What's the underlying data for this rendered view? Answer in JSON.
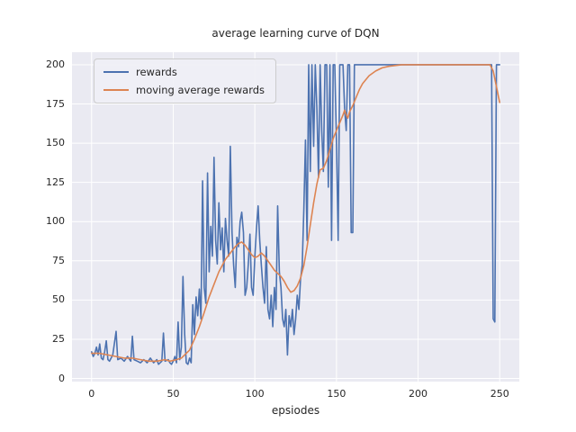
{
  "chart_data": {
    "type": "line",
    "title": "average learning curve of DQN",
    "xlabel": "epsiodes",
    "ylabel": "",
    "xlim": [
      -12,
      262
    ],
    "ylim": [
      -2,
      208
    ],
    "xticks": [
      0,
      50,
      100,
      150,
      200,
      250
    ],
    "yticks": [
      0,
      25,
      50,
      75,
      100,
      125,
      150,
      175,
      200
    ],
    "grid": true,
    "legend_position": "upper left",
    "axes_background": "#eaeaf2",
    "grid_color": "#ffffff",
    "series": [
      {
        "name": "rewards",
        "color": "#4c72b0",
        "points": [
          [
            0,
            17
          ],
          [
            1,
            14
          ],
          [
            2,
            16
          ],
          [
            3,
            20
          ],
          [
            4,
            15
          ],
          [
            5,
            22
          ],
          [
            6,
            13
          ],
          [
            7,
            12
          ],
          [
            8,
            17
          ],
          [
            9,
            24
          ],
          [
            10,
            12
          ],
          [
            11,
            11
          ],
          [
            13,
            15
          ],
          [
            15,
            30
          ],
          [
            16,
            12
          ],
          [
            18,
            13
          ],
          [
            20,
            11
          ],
          [
            22,
            14
          ],
          [
            24,
            11
          ],
          [
            25,
            27
          ],
          [
            26,
            12
          ],
          [
            28,
            11
          ],
          [
            30,
            10
          ],
          [
            32,
            12
          ],
          [
            34,
            10
          ],
          [
            36,
            13
          ],
          [
            38,
            10
          ],
          [
            40,
            12
          ],
          [
            41,
            9
          ],
          [
            43,
            11
          ],
          [
            44,
            29
          ],
          [
            45,
            11
          ],
          [
            47,
            12
          ],
          [
            48,
            10
          ],
          [
            49,
            9
          ],
          [
            50,
            11
          ],
          [
            51,
            14
          ],
          [
            52,
            10
          ],
          [
            53,
            36
          ],
          [
            54,
            12
          ],
          [
            55,
            20
          ],
          [
            56,
            65
          ],
          [
            57,
            28
          ],
          [
            58,
            10
          ],
          [
            59,
            9
          ],
          [
            60,
            13
          ],
          [
            61,
            10
          ],
          [
            62,
            47
          ],
          [
            63,
            28
          ],
          [
            64,
            52
          ],
          [
            65,
            40
          ],
          [
            66,
            57
          ],
          [
            67,
            38
          ],
          [
            68,
            126
          ],
          [
            69,
            58
          ],
          [
            70,
            48
          ],
          [
            71,
            131
          ],
          [
            72,
            68
          ],
          [
            73,
            97
          ],
          [
            74,
            78
          ],
          [
            75,
            141
          ],
          [
            76,
            88
          ],
          [
            77,
            73
          ],
          [
            78,
            112
          ],
          [
            79,
            82
          ],
          [
            80,
            96
          ],
          [
            81,
            68
          ],
          [
            82,
            102
          ],
          [
            83,
            88
          ],
          [
            84,
            78
          ],
          [
            85,
            148
          ],
          [
            86,
            93
          ],
          [
            87,
            72
          ],
          [
            88,
            58
          ],
          [
            89,
            90
          ],
          [
            90,
            84
          ],
          [
            91,
            100
          ],
          [
            92,
            106
          ],
          [
            93,
            93
          ],
          [
            94,
            53
          ],
          [
            95,
            58
          ],
          [
            96,
            73
          ],
          [
            97,
            92
          ],
          [
            98,
            58
          ],
          [
            99,
            53
          ],
          [
            100,
            78
          ],
          [
            101,
            96
          ],
          [
            102,
            110
          ],
          [
            103,
            88
          ],
          [
            104,
            72
          ],
          [
            105,
            58
          ],
          [
            106,
            48
          ],
          [
            107,
            84
          ],
          [
            108,
            44
          ],
          [
            109,
            38
          ],
          [
            110,
            53
          ],
          [
            111,
            33
          ],
          [
            112,
            58
          ],
          [
            113,
            44
          ],
          [
            114,
            110
          ],
          [
            115,
            68
          ],
          [
            116,
            58
          ],
          [
            117,
            38
          ],
          [
            118,
            33
          ],
          [
            119,
            44
          ],
          [
            120,
            15
          ],
          [
            121,
            40
          ],
          [
            122,
            33
          ],
          [
            123,
            44
          ],
          [
            124,
            28
          ],
          [
            125,
            38
          ],
          [
            126,
            53
          ],
          [
            127,
            44
          ],
          [
            128,
            63
          ],
          [
            129,
            72
          ],
          [
            130,
            108
          ],
          [
            131,
            152
          ],
          [
            132,
            88
          ],
          [
            133,
            200
          ],
          [
            134,
            132
          ],
          [
            135,
            200
          ],
          [
            136,
            148
          ],
          [
            137,
            200
          ],
          [
            138,
            172
          ],
          [
            139,
            128
          ],
          [
            140,
            200
          ],
          [
            141,
            158
          ],
          [
            142,
            132
          ],
          [
            143,
            200
          ],
          [
            144,
            200
          ],
          [
            145,
            122
          ],
          [
            146,
            200
          ],
          [
            147,
            88
          ],
          [
            148,
            200
          ],
          [
            149,
            200
          ],
          [
            150,
            152
          ],
          [
            151,
            88
          ],
          [
            152,
            200
          ],
          [
            153,
            200
          ],
          [
            154,
            200
          ],
          [
            155,
            172
          ],
          [
            156,
            158
          ],
          [
            157,
            200
          ],
          [
            158,
            200
          ],
          [
            159,
            93
          ],
          [
            160,
            93
          ],
          [
            161,
            200
          ],
          [
            162,
            200
          ],
          [
            163,
            200
          ],
          [
            165,
            200
          ],
          [
            170,
            200
          ],
          [
            180,
            200
          ],
          [
            190,
            200
          ],
          [
            200,
            200
          ],
          [
            210,
            200
          ],
          [
            220,
            200
          ],
          [
            230,
            200
          ],
          [
            240,
            200
          ],
          [
            244,
            200
          ],
          [
            245,
            200
          ],
          [
            246,
            38
          ],
          [
            247,
            36
          ],
          [
            248,
            200
          ],
          [
            249,
            200
          ],
          [
            250,
            200
          ]
        ]
      },
      {
        "name": "moving average rewards",
        "color": "#dd8452",
        "points": [
          [
            0,
            16
          ],
          [
            5,
            16
          ],
          [
            10,
            15
          ],
          [
            15,
            14
          ],
          [
            20,
            13
          ],
          [
            25,
            13
          ],
          [
            30,
            12
          ],
          [
            35,
            11
          ],
          [
            40,
            11
          ],
          [
            45,
            12
          ],
          [
            48,
            11
          ],
          [
            52,
            12
          ],
          [
            55,
            13
          ],
          [
            58,
            16
          ],
          [
            60,
            18
          ],
          [
            63,
            25
          ],
          [
            66,
            33
          ],
          [
            69,
            42
          ],
          [
            72,
            52
          ],
          [
            75,
            60
          ],
          [
            78,
            68
          ],
          [
            80,
            72
          ],
          [
            82,
            76
          ],
          [
            85,
            80
          ],
          [
            88,
            84
          ],
          [
            90,
            86
          ],
          [
            92,
            87
          ],
          [
            94,
            85
          ],
          [
            96,
            82
          ],
          [
            98,
            79
          ],
          [
            100,
            77
          ],
          [
            102,
            78
          ],
          [
            104,
            80
          ],
          [
            106,
            78
          ],
          [
            108,
            75
          ],
          [
            110,
            72
          ],
          [
            112,
            69
          ],
          [
            114,
            67
          ],
          [
            116,
            65
          ],
          [
            118,
            62
          ],
          [
            120,
            58
          ],
          [
            122,
            55
          ],
          [
            124,
            56
          ],
          [
            126,
            59
          ],
          [
            128,
            64
          ],
          [
            130,
            72
          ],
          [
            132,
            84
          ],
          [
            134,
            98
          ],
          [
            136,
            112
          ],
          [
            138,
            124
          ],
          [
            140,
            133
          ],
          [
            142,
            134
          ],
          [
            144,
            139
          ],
          [
            146,
            146
          ],
          [
            148,
            153
          ],
          [
            150,
            158
          ],
          [
            152,
            163
          ],
          [
            154,
            168
          ],
          [
            155,
            171
          ],
          [
            156,
            168
          ],
          [
            157,
            166
          ],
          [
            158,
            170
          ],
          [
            160,
            174
          ],
          [
            162,
            179
          ],
          [
            164,
            184
          ],
          [
            166,
            188
          ],
          [
            170,
            193
          ],
          [
            174,
            196
          ],
          [
            178,
            198
          ],
          [
            182,
            199
          ],
          [
            190,
            200
          ],
          [
            200,
            200
          ],
          [
            210,
            200
          ],
          [
            220,
            200
          ],
          [
            230,
            200
          ],
          [
            240,
            200
          ],
          [
            244,
            200
          ],
          [
            246,
            196
          ],
          [
            248,
            186
          ],
          [
            250,
            176
          ]
        ]
      }
    ]
  }
}
